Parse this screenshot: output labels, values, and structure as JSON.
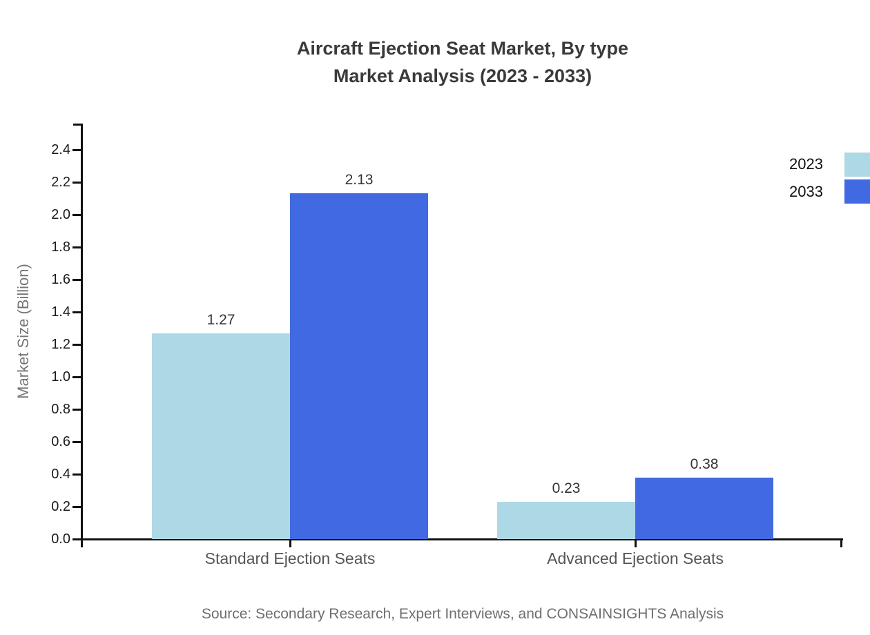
{
  "source_note": "Source: Secondary Research, Expert Interviews, and CONSAINSIGHTS Analysis",
  "theme": {
    "background": "#ffffff",
    "axis_color": "#111111",
    "title_color": "#3a3a3a",
    "tick_label_color": "#1a1a1a",
    "value_label_color": "#333333",
    "category_label_color": "#555555",
    "axis_title_color": "#757575",
    "source_color": "#6e6e6e",
    "legend_text_color": "#111111",
    "series_2023_color": "#ADD8E6",
    "series_2033_color": "#4169E1"
  },
  "chart_data": {
    "type": "bar",
    "title": "Aircraft Ejection Seat Market, By type",
    "subtitle": "Market Analysis (2023 - 2033)",
    "categories": [
      "Standard Ejection Seats",
      "Advanced Ejection Seats"
    ],
    "series": [
      {
        "name": "2023",
        "color": "#ADD8E6",
        "values": [
          1.27,
          0.23
        ]
      },
      {
        "name": "2033",
        "color": "#4169E1",
        "values": [
          2.13,
          0.38
        ]
      }
    ],
    "value_labels": [
      "1.27",
      "2.13",
      "0.23",
      "0.38"
    ],
    "xlabel": "",
    "ylabel": "Market Size (Billion)",
    "ylim": [
      0.0,
      2.5
    ],
    "yticks": [
      0.0,
      0.2,
      0.4,
      0.6,
      0.8,
      1.0,
      1.2,
      1.4,
      1.6,
      1.8,
      2.0,
      2.2,
      2.4
    ],
    "ytick_format": "0.0",
    "value_label_format": "0.00",
    "grid": false,
    "legend_position": "top-right"
  }
}
